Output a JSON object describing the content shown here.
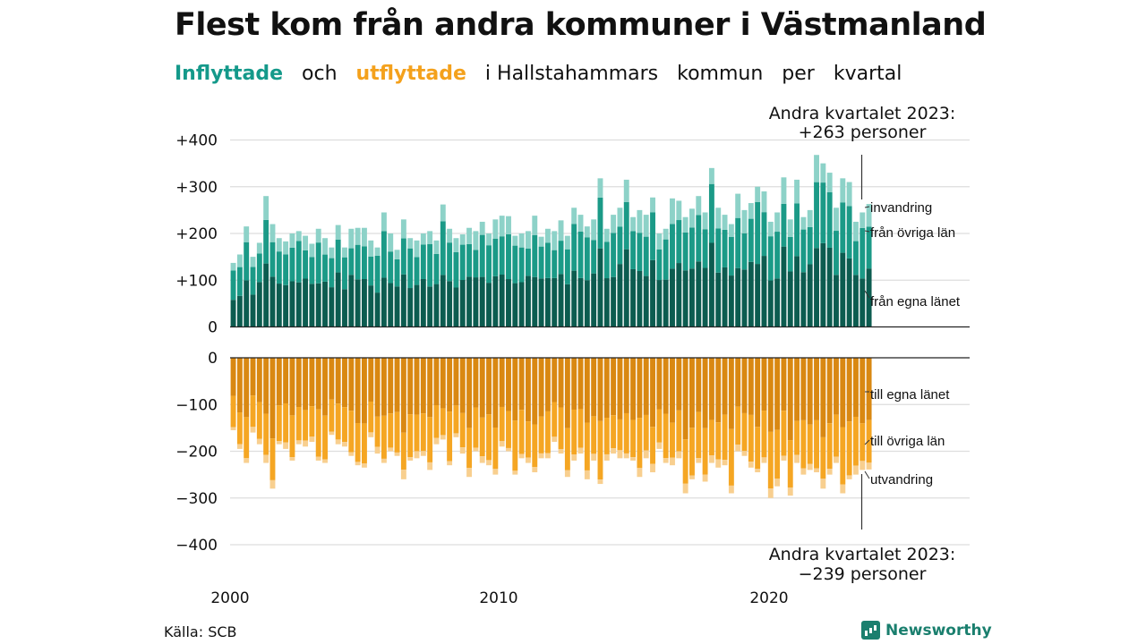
{
  "header": {
    "title": "Flest kom från andra kommuner i Västmanland",
    "subtitle_in": "Inflyttade",
    "subtitle_och": "och",
    "subtitle_out": "utflyttade",
    "subtitle_rest1": "i Hallstahammars",
    "subtitle_rest2": "kommun",
    "subtitle_rest3": "per",
    "subtitle_rest4": "kvartal"
  },
  "footer": {
    "source": "Källa: SCB",
    "brand": "Newsworthy"
  },
  "colors": {
    "in_own": "#0c5c50",
    "in_other": "#1b9a87",
    "in_foreign": "#8dd2c8",
    "out_own": "#d98812",
    "out_other": "#f5a623",
    "out_foreign": "#f8cf8f",
    "grid": "#dddddd",
    "axis": "#222222"
  },
  "chart_data": {
    "type": "bar",
    "subtype": "stacked-diverging",
    "x_ticks": [
      "2000",
      "2010",
      "2020"
    ],
    "x_start_year": 2000,
    "ylim": [
      -400,
      400
    ],
    "y_ticks_top": [
      "+400",
      "+300",
      "+200",
      "+100",
      "0"
    ],
    "y_ticks_bottom": [
      "0",
      "−100",
      "−200",
      "−300",
      "−400"
    ],
    "series_labels_in": [
      "invandring",
      "från övriga län",
      "från egna länet"
    ],
    "series_labels_out": [
      "till egna länet",
      "till övriga län",
      "utvandring"
    ],
    "annotation_top": [
      "Andra kvartalet 2023:",
      "+263 personer"
    ],
    "annotation_bottom": [
      "Andra kvartalet 2023:",
      "−239 personer"
    ],
    "inflow_totals": [
      137,
      155,
      215,
      150,
      180,
      280,
      220,
      190,
      183,
      200,
      205,
      195,
      178,
      210,
      190,
      170,
      218,
      170,
      210,
      212,
      212,
      185,
      170,
      245,
      200,
      165,
      230,
      190,
      185,
      200,
      205,
      185,
      262,
      210,
      190,
      198,
      212,
      205,
      225,
      200,
      230,
      238,
      237,
      195,
      200,
      205,
      238,
      193,
      210,
      205,
      228,
      195,
      255,
      240,
      215,
      230,
      318,
      210,
      240,
      255,
      315,
      235,
      250,
      240,
      277,
      200,
      210,
      275,
      270,
      235,
      253,
      280,
      245,
      340,
      255,
      240,
      220,
      285,
      250,
      265,
      300,
      290,
      225,
      245,
      320,
      230,
      315,
      235,
      250,
      368,
      350,
      330,
      255,
      318,
      310,
      225,
      245,
      263
    ],
    "outflow_totals": [
      155,
      195,
      225,
      160,
      185,
      225,
      280,
      185,
      195,
      220,
      185,
      190,
      180,
      220,
      225,
      165,
      185,
      190,
      210,
      230,
      235,
      170,
      205,
      225,
      200,
      210,
      260,
      220,
      215,
      210,
      240,
      185,
      175,
      230,
      170,
      205,
      255,
      200,
      225,
      230,
      250,
      190,
      200,
      250,
      215,
      225,
      245,
      215,
      215,
      180,
      205,
      255,
      220,
      205,
      260,
      220,
      270,
      220,
      205,
      215,
      215,
      220,
      255,
      215,
      245,
      195,
      225,
      230,
      215,
      290,
      260,
      225,
      265,
      225,
      235,
      230,
      290,
      200,
      210,
      235,
      245,
      225,
      300,
      275,
      220,
      295,
      225,
      250,
      240,
      245,
      280,
      250,
      225,
      290,
      260,
      250,
      240,
      239
    ]
  }
}
